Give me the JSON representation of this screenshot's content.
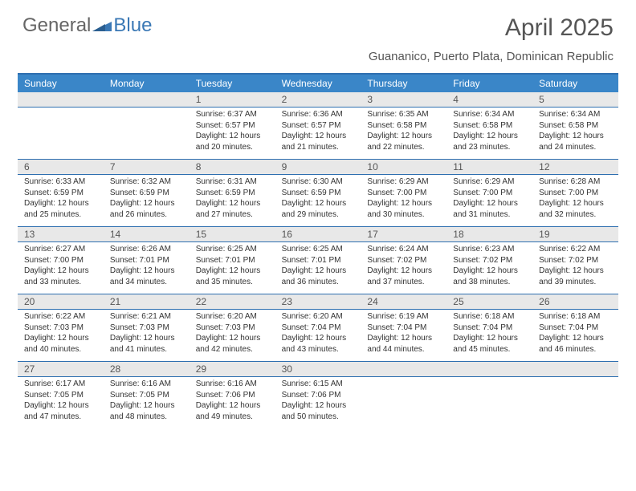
{
  "logo": {
    "text1": "General",
    "text2": "Blue"
  },
  "header": {
    "title": "April 2025",
    "location": "Guananico, Puerto Plata, Dominican Republic"
  },
  "colors": {
    "header_bg": "#3a86c8",
    "rule": "#2e6fb0",
    "daynum_bg": "#e8e8e8",
    "text": "#333333",
    "title_text": "#555555"
  },
  "day_names": [
    "Sunday",
    "Monday",
    "Tuesday",
    "Wednesday",
    "Thursday",
    "Friday",
    "Saturday"
  ],
  "weeks": [
    {
      "nums": [
        "",
        "",
        "1",
        "2",
        "3",
        "4",
        "5"
      ],
      "cells": [
        null,
        null,
        {
          "sunrise": "6:37 AM",
          "sunset": "6:57 PM",
          "daylight": "12 hours and 20 minutes."
        },
        {
          "sunrise": "6:36 AM",
          "sunset": "6:57 PM",
          "daylight": "12 hours and 21 minutes."
        },
        {
          "sunrise": "6:35 AM",
          "sunset": "6:58 PM",
          "daylight": "12 hours and 22 minutes."
        },
        {
          "sunrise": "6:34 AM",
          "sunset": "6:58 PM",
          "daylight": "12 hours and 23 minutes."
        },
        {
          "sunrise": "6:34 AM",
          "sunset": "6:58 PM",
          "daylight": "12 hours and 24 minutes."
        }
      ]
    },
    {
      "nums": [
        "6",
        "7",
        "8",
        "9",
        "10",
        "11",
        "12"
      ],
      "cells": [
        {
          "sunrise": "6:33 AM",
          "sunset": "6:59 PM",
          "daylight": "12 hours and 25 minutes."
        },
        {
          "sunrise": "6:32 AM",
          "sunset": "6:59 PM",
          "daylight": "12 hours and 26 minutes."
        },
        {
          "sunrise": "6:31 AM",
          "sunset": "6:59 PM",
          "daylight": "12 hours and 27 minutes."
        },
        {
          "sunrise": "6:30 AM",
          "sunset": "6:59 PM",
          "daylight": "12 hours and 29 minutes."
        },
        {
          "sunrise": "6:29 AM",
          "sunset": "7:00 PM",
          "daylight": "12 hours and 30 minutes."
        },
        {
          "sunrise": "6:29 AM",
          "sunset": "7:00 PM",
          "daylight": "12 hours and 31 minutes."
        },
        {
          "sunrise": "6:28 AM",
          "sunset": "7:00 PM",
          "daylight": "12 hours and 32 minutes."
        }
      ]
    },
    {
      "nums": [
        "13",
        "14",
        "15",
        "16",
        "17",
        "18",
        "19"
      ],
      "cells": [
        {
          "sunrise": "6:27 AM",
          "sunset": "7:00 PM",
          "daylight": "12 hours and 33 minutes."
        },
        {
          "sunrise": "6:26 AM",
          "sunset": "7:01 PM",
          "daylight": "12 hours and 34 minutes."
        },
        {
          "sunrise": "6:25 AM",
          "sunset": "7:01 PM",
          "daylight": "12 hours and 35 minutes."
        },
        {
          "sunrise": "6:25 AM",
          "sunset": "7:01 PM",
          "daylight": "12 hours and 36 minutes."
        },
        {
          "sunrise": "6:24 AM",
          "sunset": "7:02 PM",
          "daylight": "12 hours and 37 minutes."
        },
        {
          "sunrise": "6:23 AM",
          "sunset": "7:02 PM",
          "daylight": "12 hours and 38 minutes."
        },
        {
          "sunrise": "6:22 AM",
          "sunset": "7:02 PM",
          "daylight": "12 hours and 39 minutes."
        }
      ]
    },
    {
      "nums": [
        "20",
        "21",
        "22",
        "23",
        "24",
        "25",
        "26"
      ],
      "cells": [
        {
          "sunrise": "6:22 AM",
          "sunset": "7:03 PM",
          "daylight": "12 hours and 40 minutes."
        },
        {
          "sunrise": "6:21 AM",
          "sunset": "7:03 PM",
          "daylight": "12 hours and 41 minutes."
        },
        {
          "sunrise": "6:20 AM",
          "sunset": "7:03 PM",
          "daylight": "12 hours and 42 minutes."
        },
        {
          "sunrise": "6:20 AM",
          "sunset": "7:04 PM",
          "daylight": "12 hours and 43 minutes."
        },
        {
          "sunrise": "6:19 AM",
          "sunset": "7:04 PM",
          "daylight": "12 hours and 44 minutes."
        },
        {
          "sunrise": "6:18 AM",
          "sunset": "7:04 PM",
          "daylight": "12 hours and 45 minutes."
        },
        {
          "sunrise": "6:18 AM",
          "sunset": "7:04 PM",
          "daylight": "12 hours and 46 minutes."
        }
      ]
    },
    {
      "nums": [
        "27",
        "28",
        "29",
        "30",
        "",
        "",
        ""
      ],
      "cells": [
        {
          "sunrise": "6:17 AM",
          "sunset": "7:05 PM",
          "daylight": "12 hours and 47 minutes."
        },
        {
          "sunrise": "6:16 AM",
          "sunset": "7:05 PM",
          "daylight": "12 hours and 48 minutes."
        },
        {
          "sunrise": "6:16 AM",
          "sunset": "7:06 PM",
          "daylight": "12 hours and 49 minutes."
        },
        {
          "sunrise": "6:15 AM",
          "sunset": "7:06 PM",
          "daylight": "12 hours and 50 minutes."
        },
        null,
        null,
        null
      ]
    }
  ],
  "labels": {
    "sunrise": "Sunrise:",
    "sunset": "Sunset:",
    "daylight": "Daylight:"
  }
}
